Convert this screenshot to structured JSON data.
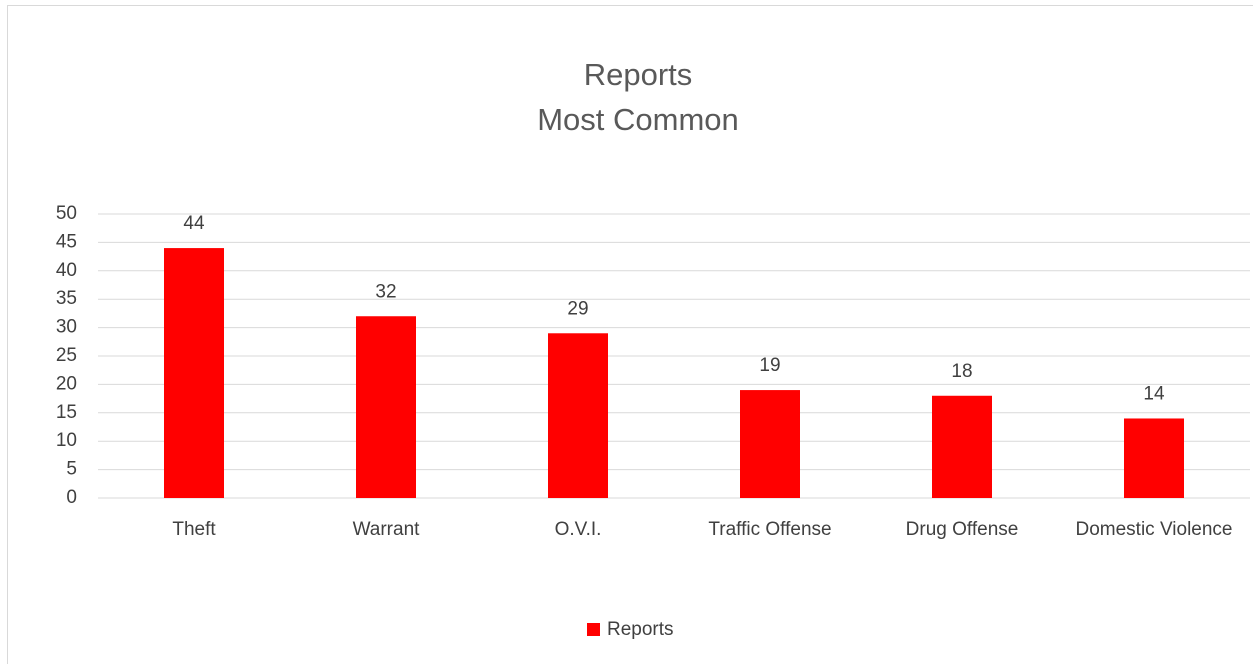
{
  "chart_data": {
    "type": "bar",
    "title": "Reports",
    "subtitle": "Most Common",
    "categories": [
      "Theft",
      "Warrant",
      "O.V.I.",
      "Traffic Offense",
      "Drug Offense",
      "Domestic Violence"
    ],
    "series": [
      {
        "name": "Reports",
        "color": "#ff0000",
        "values": [
          44,
          32,
          29,
          19,
          18,
          14
        ]
      }
    ],
    "ylim": [
      0,
      50
    ],
    "yticks": [
      0,
      5,
      10,
      15,
      20,
      25,
      30,
      35,
      40,
      45,
      50
    ],
    "grid": true,
    "legend": "bottom",
    "data_labels": true
  }
}
